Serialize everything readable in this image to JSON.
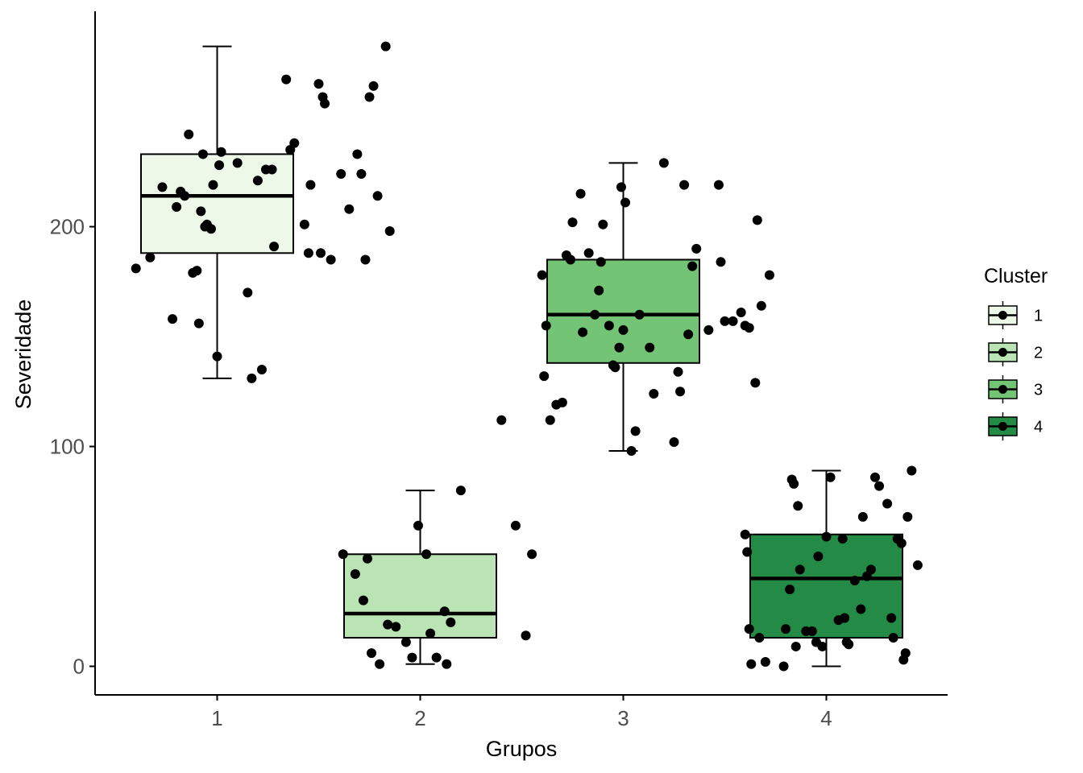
{
  "chart_data": {
    "type": "boxplot",
    "xlabel": "Grupos",
    "ylabel": "Severidade",
    "categories": [
      "1",
      "2",
      "3",
      "4"
    ],
    "y_ticks": [
      0,
      100,
      200
    ],
    "ylim": [
      -13,
      298
    ],
    "grid": false,
    "legend": {
      "title": "Cluster",
      "placement": "right",
      "entries": [
        {
          "label": "1",
          "color": "#edf8e9"
        },
        {
          "label": "2",
          "color": "#bae4b3"
        },
        {
          "label": "3",
          "color": "#74c476"
        },
        {
          "label": "4",
          "color": "#238b45"
        }
      ]
    },
    "series": [
      {
        "name": "1",
        "box": {
          "lower_whisker": 131,
          "q1": 188,
          "median": 214,
          "q3": 233,
          "upper_whisker": 282
        },
        "points": [
          [
            0.6,
            181
          ],
          [
            0.67,
            186
          ],
          [
            0.73,
            218
          ],
          [
            0.78,
            158
          ],
          [
            0.8,
            209
          ],
          [
            0.82,
            216
          ],
          [
            0.84,
            214
          ],
          [
            0.86,
            242
          ],
          [
            0.88,
            179
          ],
          [
            0.9,
            180
          ],
          [
            0.91,
            156
          ],
          [
            0.92,
            207
          ],
          [
            0.93,
            233
          ],
          [
            0.94,
            200
          ],
          [
            0.95,
            201
          ],
          [
            0.97,
            199
          ],
          [
            0.98,
            219
          ],
          [
            1.0,
            141
          ],
          [
            1.01,
            228
          ],
          [
            1.02,
            234
          ],
          [
            1.1,
            229
          ],
          [
            1.15,
            170
          ],
          [
            1.17,
            131
          ],
          [
            1.2,
            221
          ],
          [
            1.22,
            135
          ],
          [
            1.24,
            226
          ],
          [
            1.27,
            226
          ],
          [
            1.28,
            191
          ],
          [
            1.34,
            267
          ],
          [
            1.36,
            235
          ],
          [
            1.38,
            238
          ],
          [
            1.43,
            201
          ],
          [
            1.45,
            188
          ],
          [
            1.46,
            219
          ],
          [
            1.5,
            265
          ],
          [
            1.51,
            188
          ],
          [
            1.52,
            259
          ],
          [
            1.53,
            256
          ],
          [
            1.56,
            185
          ],
          [
            1.61,
            224
          ],
          [
            1.65,
            208
          ],
          [
            1.69,
            233
          ],
          [
            1.71,
            224
          ],
          [
            1.73,
            185
          ],
          [
            1.75,
            259
          ],
          [
            1.77,
            264
          ],
          [
            1.79,
            214
          ],
          [
            1.83,
            282
          ],
          [
            1.85,
            198
          ]
        ]
      },
      {
        "name": "2",
        "box": {
          "lower_whisker": 1,
          "q1": 13,
          "median": 24,
          "q3": 51,
          "upper_whisker": 80
        },
        "points": [
          [
            1.62,
            51
          ],
          [
            1.68,
            42
          ],
          [
            1.72,
            30
          ],
          [
            1.74,
            49
          ],
          [
            1.76,
            6
          ],
          [
            1.8,
            1
          ],
          [
            1.84,
            19
          ],
          [
            1.88,
            18
          ],
          [
            1.93,
            11
          ],
          [
            1.96,
            4
          ],
          [
            1.99,
            64
          ],
          [
            2.03,
            51
          ],
          [
            2.05,
            15
          ],
          [
            2.08,
            4
          ],
          [
            2.12,
            25
          ],
          [
            2.13,
            1
          ],
          [
            2.15,
            20
          ],
          [
            2.2,
            80
          ],
          [
            2.4,
            112
          ],
          [
            2.47,
            64
          ],
          [
            2.52,
            14
          ],
          [
            2.55,
            51
          ]
        ]
      },
      {
        "name": "3",
        "box": {
          "lower_whisker": 98,
          "q1": 138,
          "median": 160,
          "q3": 185,
          "upper_whisker": 229
        },
        "points": [
          [
            2.6,
            178
          ],
          [
            2.61,
            132
          ],
          [
            2.62,
            155
          ],
          [
            2.64,
            112
          ],
          [
            2.67,
            119
          ],
          [
            2.7,
            120
          ],
          [
            2.72,
            187
          ],
          [
            2.74,
            185
          ],
          [
            2.75,
            202
          ],
          [
            2.79,
            215
          ],
          [
            2.8,
            152
          ],
          [
            2.83,
            188
          ],
          [
            2.86,
            160
          ],
          [
            2.88,
            171
          ],
          [
            2.89,
            184
          ],
          [
            2.9,
            201
          ],
          [
            2.93,
            155
          ],
          [
            2.95,
            137
          ],
          [
            2.96,
            136
          ],
          [
            2.98,
            145
          ],
          [
            2.99,
            218
          ],
          [
            3.0,
            153
          ],
          [
            3.01,
            211
          ],
          [
            3.04,
            98
          ],
          [
            3.06,
            107
          ],
          [
            3.08,
            160
          ],
          [
            3.13,
            145
          ],
          [
            3.15,
            124
          ],
          [
            3.2,
            229
          ],
          [
            3.25,
            102
          ],
          [
            3.27,
            134
          ],
          [
            3.28,
            125
          ],
          [
            3.3,
            219
          ],
          [
            3.32,
            151
          ],
          [
            3.34,
            182
          ],
          [
            3.36,
            190
          ],
          [
            3.42,
            153
          ],
          [
            3.47,
            219
          ],
          [
            3.48,
            184
          ],
          [
            3.5,
            157
          ],
          [
            3.54,
            157
          ],
          [
            3.58,
            161
          ],
          [
            3.6,
            155
          ],
          [
            3.62,
            154
          ],
          [
            3.65,
            129
          ],
          [
            3.66,
            203
          ],
          [
            3.68,
            164
          ],
          [
            3.72,
            178
          ]
        ]
      },
      {
        "name": "4",
        "box": {
          "lower_whisker": 0,
          "q1": 13,
          "median": 40,
          "q3": 60,
          "upper_whisker": 89
        },
        "points": [
          [
            3.6,
            60
          ],
          [
            3.61,
            52
          ],
          [
            3.62,
            17
          ],
          [
            3.63,
            1
          ],
          [
            3.67,
            13
          ],
          [
            3.7,
            2
          ],
          [
            3.79,
            0
          ],
          [
            3.8,
            17
          ],
          [
            3.82,
            35
          ],
          [
            3.83,
            85
          ],
          [
            3.84,
            83
          ],
          [
            3.85,
            9
          ],
          [
            3.86,
            73
          ],
          [
            3.87,
            44
          ],
          [
            3.9,
            16
          ],
          [
            3.93,
            16
          ],
          [
            3.95,
            11
          ],
          [
            3.96,
            50
          ],
          [
            3.98,
            9
          ],
          [
            4.0,
            59
          ],
          [
            4.02,
            86
          ],
          [
            4.06,
            21
          ],
          [
            4.08,
            58
          ],
          [
            4.09,
            22
          ],
          [
            4.1,
            11
          ],
          [
            4.11,
            10
          ],
          [
            4.14,
            39
          ],
          [
            4.17,
            26
          ],
          [
            4.18,
            68
          ],
          [
            4.2,
            41
          ],
          [
            4.22,
            44
          ],
          [
            4.24,
            86
          ],
          [
            4.26,
            82
          ],
          [
            4.3,
            74
          ],
          [
            4.32,
            22
          ],
          [
            4.33,
            13
          ],
          [
            4.35,
            58
          ],
          [
            4.37,
            56
          ],
          [
            4.38,
            3
          ],
          [
            4.39,
            6
          ],
          [
            4.4,
            68
          ],
          [
            4.42,
            89
          ],
          [
            4.45,
            46
          ]
        ]
      }
    ]
  }
}
